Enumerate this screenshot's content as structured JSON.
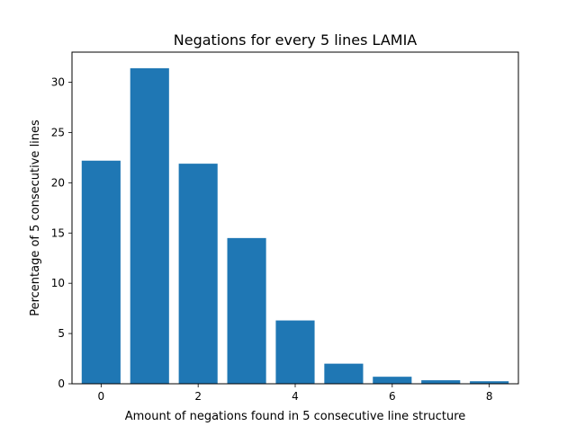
{
  "chart_data": {
    "type": "bar",
    "title": "Negations for every 5 lines LAMIA",
    "xlabel": "Amount of negations found in 5 consecutive line structure",
    "ylabel": "Percentage of 5 consecutive lines",
    "x": [
      0,
      1,
      2,
      3,
      4,
      5,
      6,
      7,
      8
    ],
    "values": [
      22.2,
      31.4,
      21.9,
      14.5,
      6.3,
      2.0,
      0.7,
      0.35,
      0.25
    ],
    "xlim": [
      -0.6,
      8.6
    ],
    "ylim": [
      0,
      33.0
    ],
    "xticks": [
      0,
      2,
      4,
      6,
      8
    ],
    "yticks": [
      0,
      5,
      10,
      15,
      20,
      25,
      30
    ],
    "bar_width": 0.8,
    "bar_color": "#1f77b4",
    "grid": false,
    "legend": "none"
  }
}
